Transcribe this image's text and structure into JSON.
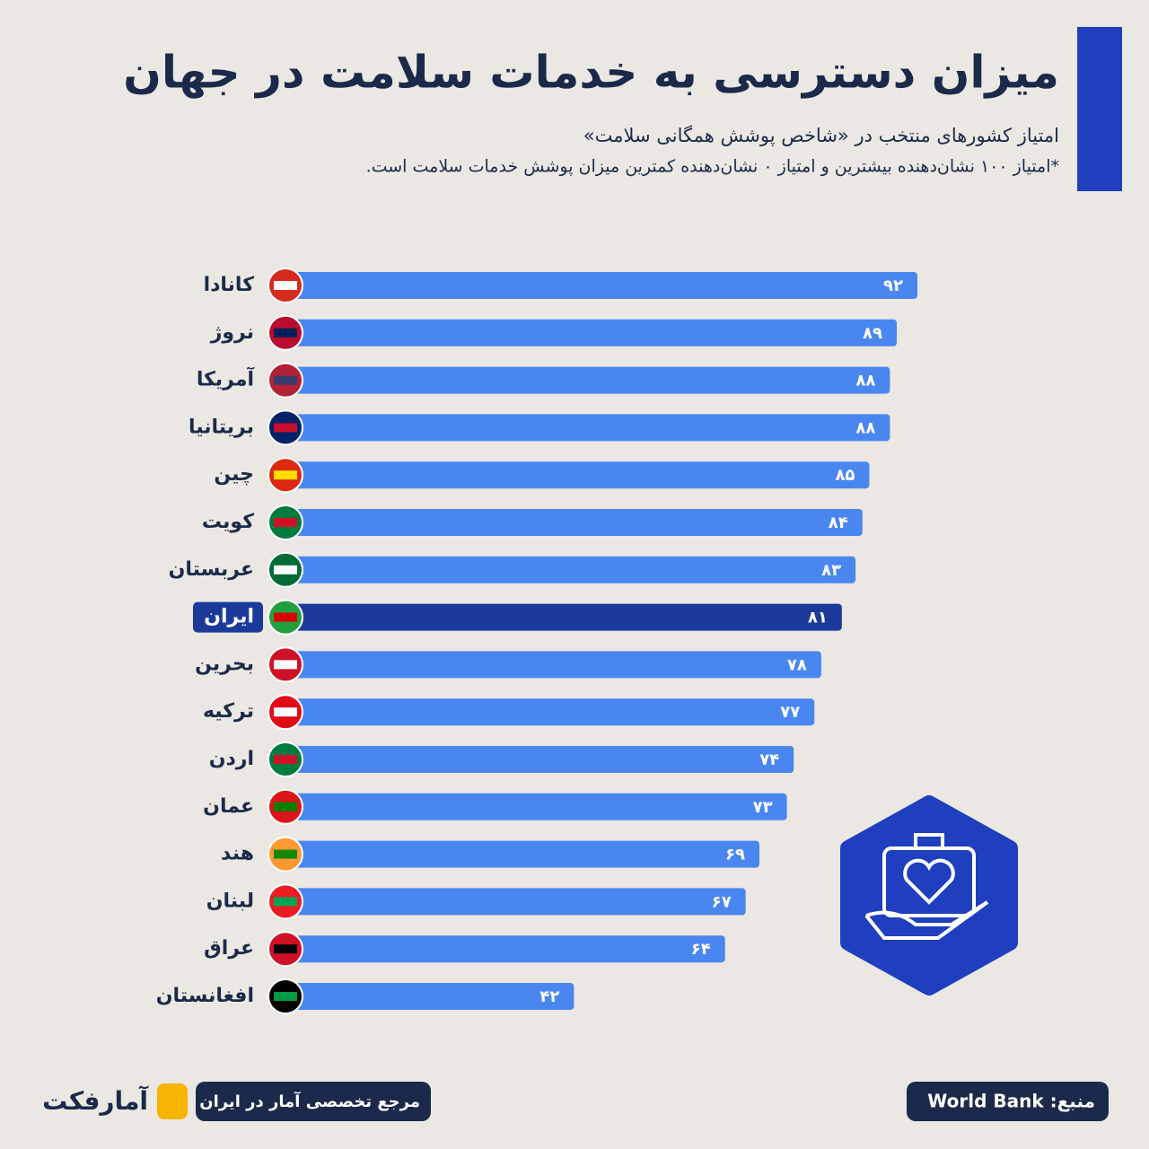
{
  "chart_data": {
    "type": "bar",
    "orientation": "horizontal",
    "title": "میزان دسترسی به خدمات سلامت در جهان",
    "subtitle": "امتیاز کشورهای منتخب در «شاخص پوشش همگانی سلامت»",
    "note": "*امتیاز ۱۰۰ نشان‌دهنده بیشترین و امتیاز ۰ نشان‌دهنده کمترین میزان پوشش خدمات سلامت است.",
    "categories": [
      "کانادا",
      "نروژ",
      "آمریکا",
      "بریتانیا",
      "چین",
      "کویت",
      "عربستان",
      "ایران",
      "بحرین",
      "ترکیه",
      "اردن",
      "عمان",
      "هند",
      "لبنان",
      "عراق",
      "افغانستان"
    ],
    "values": [
      92,
      89,
      88,
      88,
      85,
      84,
      83,
      81,
      78,
      77,
      74,
      73,
      69,
      67,
      64,
      42
    ],
    "value_labels": [
      "۹۲",
      "۸۹",
      "۸۸",
      "۸۸",
      "۸۵",
      "۸۴",
      "۸۳",
      "۸۱",
      "۷۸",
      "۷۷",
      "۷۴",
      "۷۳",
      "۶۹",
      "۶۷",
      "۶۴",
      "۴۲"
    ],
    "colors": [
      "#4a86f0",
      "#4a86f0",
      "#4a86f0",
      "#4a86f0",
      "#4a86f0",
      "#4a86f0",
      "#4a86f0",
      "#1b3a9a",
      "#4a86f0",
      "#4a86f0",
      "#4a86f0",
      "#4a86f0",
      "#4a86f0",
      "#4a86f0",
      "#4a86f0",
      "#4a86f0"
    ],
    "source": "منبع: World Bank",
    "tagline": "مرجع تخصصی آمار در ایران",
    "brand": "آمارفکت"
  }
}
